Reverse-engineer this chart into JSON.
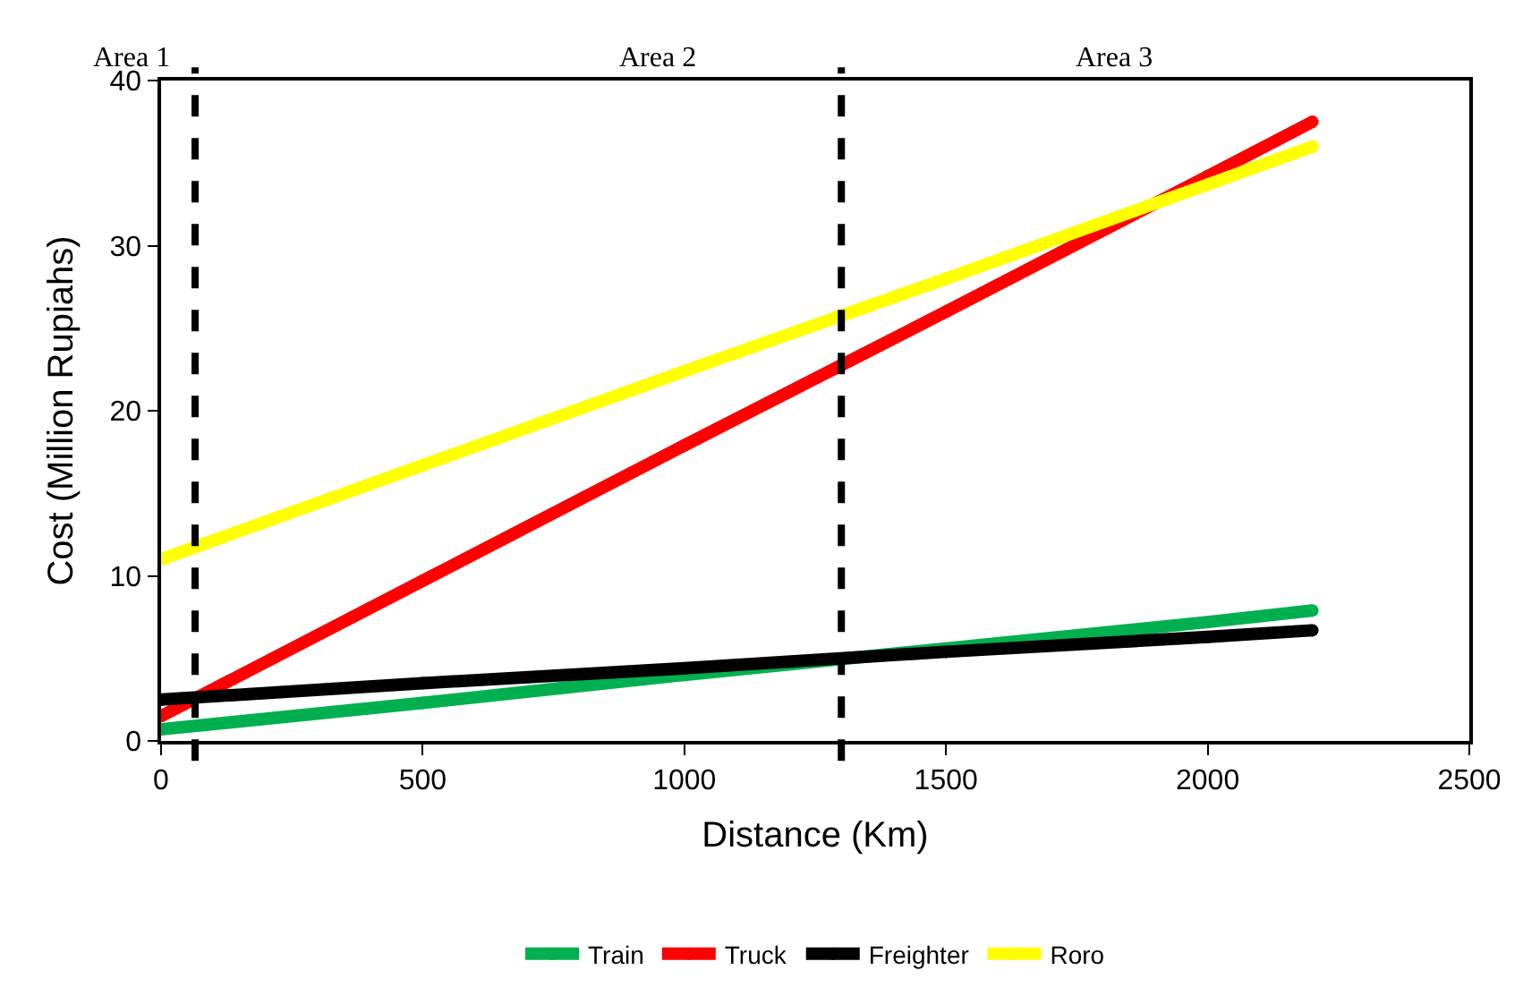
{
  "chart_data": {
    "type": "line",
    "xlabel": "Distance (Km)",
    "ylabel": "Cost (Million Rupiahs)",
    "x": [
      0,
      500,
      1000,
      1500,
      2000,
      2200
    ],
    "series": [
      {
        "name": "Train",
        "color": "#00b050",
        "values": [
          0.7,
          2.3,
          4.0,
          5.6,
          7.2,
          7.9
        ]
      },
      {
        "name": "Truck",
        "color": "#ff0000",
        "values": [
          1.5,
          9.7,
          17.9,
          26.0,
          34.2,
          37.5
        ]
      },
      {
        "name": "Freighter",
        "color": "#000000",
        "values": [
          2.5,
          3.5,
          4.4,
          5.4,
          6.3,
          6.7
        ]
      },
      {
        "name": "Roro",
        "color": "#ffff00",
        "values": [
          11.0,
          16.7,
          22.4,
          28.0,
          33.7,
          36.0
        ]
      }
    ],
    "xlim": [
      0,
      2500
    ],
    "xticks": [
      0,
      500,
      1000,
      1500,
      2000,
      2500
    ],
    "ylim": [
      0,
      40
    ],
    "yticks": [
      0,
      10,
      20,
      30,
      40
    ],
    "ref_lines": [
      {
        "axis": "x",
        "value": 65,
        "color": "#000000",
        "line_style": "dashed"
      },
      {
        "axis": "x",
        "value": 1300,
        "color": "#000000",
        "line_style": "dashed"
      }
    ],
    "annotations": [
      "Area 1",
      "Area 2",
      "Area 3"
    ],
    "legend": "bottom",
    "marker": "circle",
    "line_style": "solid"
  }
}
